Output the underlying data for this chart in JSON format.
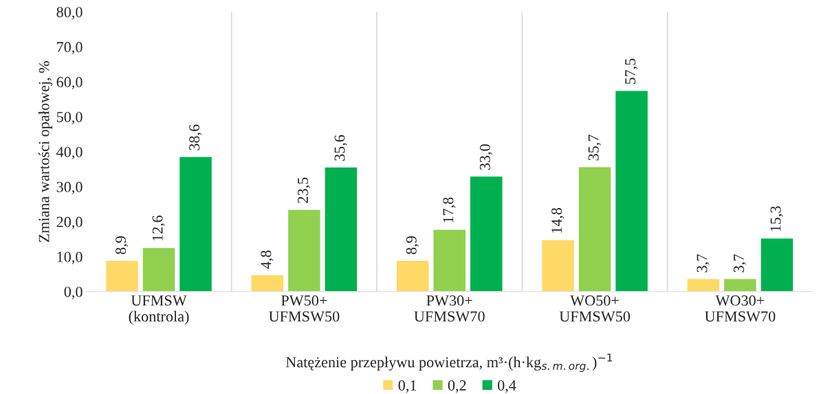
{
  "chart_data": {
    "type": "bar",
    "ylabel": "Zmiana wartości opałowej, %",
    "legend_title": "Natężenie przepływu powietrza, m³·(h·kg$_{s.m.org.}$)$^{−1}$",
    "categories": [
      "UFMSW\n(kontrola)",
      "PW50+\nUFMSW50",
      "PW30+\nUFMSW70",
      "WO50+\nUFMSW50",
      "WO30+\nUFMSW70"
    ],
    "series": [
      {
        "name": "0,1",
        "color": "#ffd966",
        "values": [
          8.9,
          4.8,
          8.9,
          14.8,
          3.7
        ],
        "value_labels": [
          "8,9",
          "4,8",
          "8,9",
          "14,8",
          "3,7"
        ]
      },
      {
        "name": "0,2",
        "color": "#92d050",
        "values": [
          12.6,
          23.5,
          17.8,
          35.7,
          3.7
        ],
        "value_labels": [
          "12,6",
          "23,5",
          "17,8",
          "35,7",
          "3,7"
        ]
      },
      {
        "name": "0,4",
        "color": "#00b050",
        "values": [
          38.6,
          35.6,
          33.0,
          57.5,
          15.3
        ],
        "value_labels": [
          "38,6",
          "35,6",
          "33,0",
          "57,5",
          "15,3"
        ]
      }
    ],
    "ylim": [
      0,
      80
    ],
    "yticks": [
      {
        "value": 0,
        "label": "0,0"
      },
      {
        "value": 10,
        "label": "10,0"
      },
      {
        "value": 20,
        "label": "20,0"
      },
      {
        "value": 30,
        "label": "30,0"
      },
      {
        "value": 40,
        "label": "40,0"
      },
      {
        "value": 50,
        "label": "50,0"
      },
      {
        "value": 60,
        "label": "60,0"
      },
      {
        "value": 70,
        "label": "70,0"
      },
      {
        "value": 80,
        "label": "80,0"
      }
    ],
    "grid": "x",
    "legend": "bottom"
  }
}
